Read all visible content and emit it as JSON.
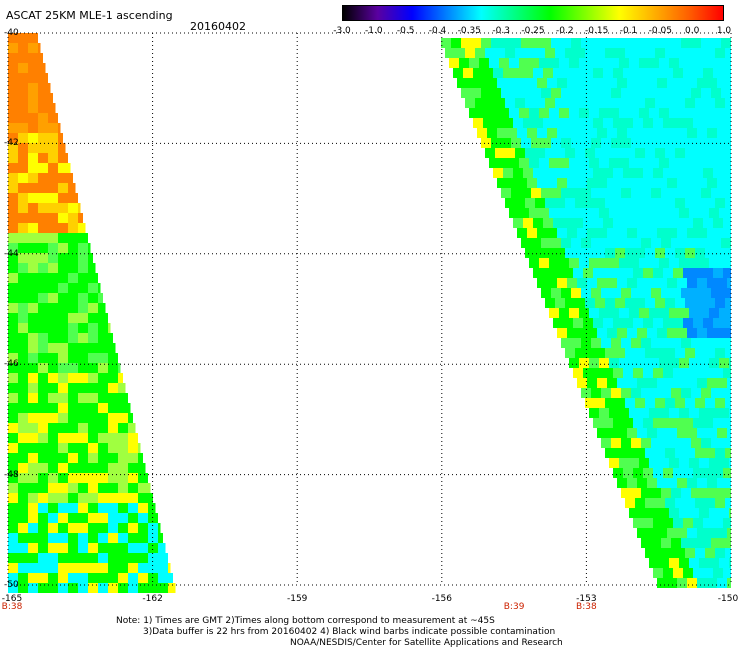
{
  "header": {
    "title": "ASCAT 25KM MLE-1 ascending",
    "date": "20160402"
  },
  "colorbar": {
    "labels": [
      "-3.0",
      "-1.0",
      "-0.5",
      "-0.4",
      "-0.35",
      "-0.3",
      "-0.25",
      "-0.2",
      "-0.15",
      "-0.1",
      "-0.05",
      "0.0",
      "1.0"
    ],
    "colors": [
      "#000000",
      "#5a00a0",
      "#0000ff",
      "#0080ff",
      "#00ffff",
      "#00ff80",
      "#00ff00",
      "#80ff00",
      "#ffff00",
      "#ffb000",
      "#ff6000",
      "#ff0000"
    ]
  },
  "map": {
    "lat_labels": [
      "-40",
      "-42",
      "-44",
      "-46",
      "-48",
      "-50"
    ],
    "lon_labels": [
      "-165",
      "-162",
      "-159",
      "-156",
      "-153",
      "-150"
    ],
    "lat_range": [
      -50,
      -40
    ],
    "lon_range": [
      -165,
      -150
    ],
    "swath_colors": {
      "orange": "#ff8000",
      "yellow": "#ffff00",
      "green": "#00ff00",
      "lightgreen": "#50ff50",
      "cyan": "#00ffff",
      "aqua": "#00ffcc",
      "blue": "#0088ff"
    }
  },
  "pass_labels": [
    {
      "text": "B:38",
      "lon": -165
    },
    {
      "text": "B:39",
      "lon": -154.5
    },
    {
      "text": "B:38",
      "lon": -153
    }
  ],
  "notes": {
    "line1": "Note: 1) Times are GMT 2)Times along bottom correspond to measurement at ~45S",
    "line2": "3)Data buffer is 22 hrs from 20160402 4) Black wind barbs indicate possible contamination",
    "line3": "NOAA/NESDIS/Center for Satellite Applications and Research"
  }
}
